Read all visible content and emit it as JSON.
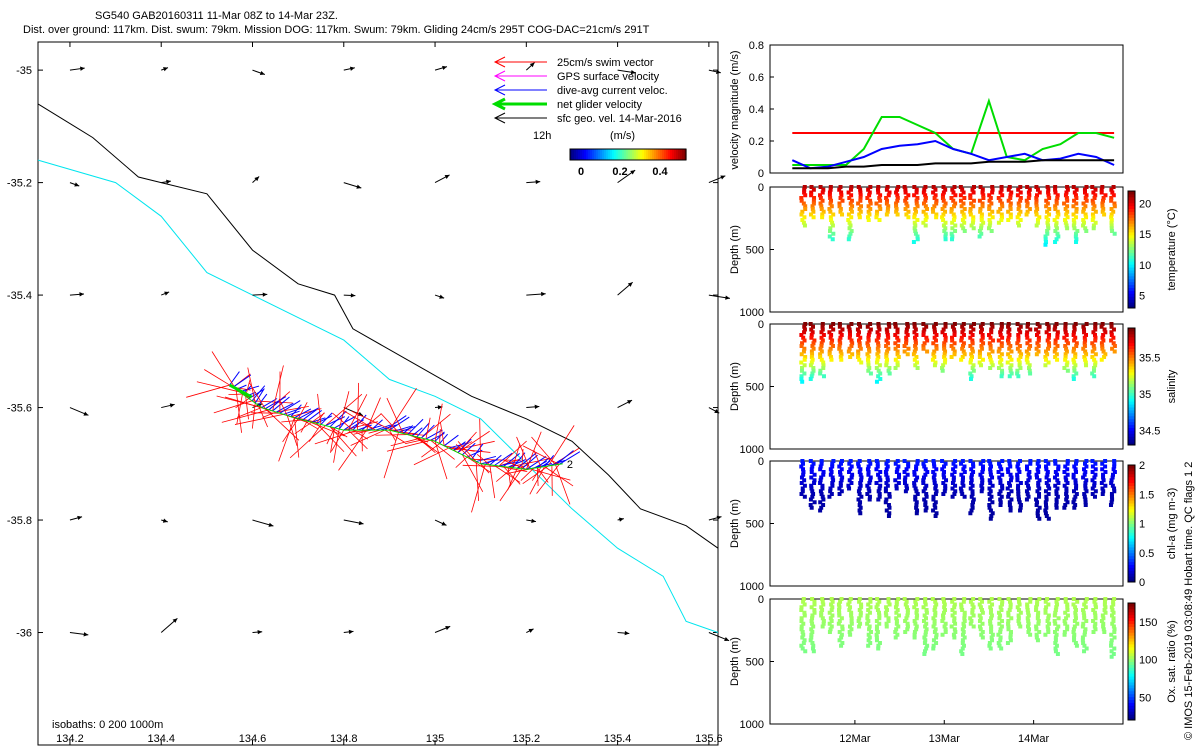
{
  "header": {
    "title": "SG540 GAB20160311 11-Mar 08Z to 14-Mar 23Z.",
    "subtitle": "Dist. over ground: 117km. Dist. swum: 79km. Mission DOG: 117km. Swum: 79km. Gliding 24cm/s 295T COG-DAC=21cm/s 291T"
  },
  "colors": {
    "swim": "#ff0000",
    "gps": "#ff00ff",
    "dac": "#0000ff",
    "net": "#00dd00",
    "sfc": "#000000",
    "iso200": "#000000",
    "iso1000": "#00e5ee"
  },
  "legend": {
    "items": [
      {
        "label": "25cm/s swim vector",
        "color": "#ff0000"
      },
      {
        "label": "GPS surface velocity",
        "color": "#ff00ff"
      },
      {
        "label": "dive-avg current veloc.",
        "color": "#0000ff"
      },
      {
        "label": "net glider velocity",
        "color": "#00dd00"
      },
      {
        "label": "sfc geo. vel. 14-Mar-2016",
        "color": "#000000"
      }
    ],
    "scale_label": "12h",
    "colorbar_units": "(m/s)",
    "colorbar_ticks": [
      "0",
      "0.2",
      "0.4"
    ]
  },
  "footer": {
    "isobaths": "isobaths: 0   200  1000m",
    "credit": "© IMOS 15-Feb-2019 03:08:49 Hobart time. QC flags 1  2"
  },
  "chart_data": [
    {
      "type": "scatter",
      "name": "map",
      "xlabel": "",
      "ylabel": "",
      "xlim": [
        134.13,
        135.62
      ],
      "ylim": [
        -36.2,
        -34.95
      ],
      "x_ticks": [
        "134.2",
        "134.4",
        "134.6",
        "134.8",
        "135",
        "135.2",
        "135.4",
        "135.6"
      ],
      "y_ticks": [
        "-35",
        "-35.2",
        "-35.4",
        "-35.6",
        "-35.8",
        "-36"
      ],
      "isobath_200": [
        [
          134.13,
          -35.06
        ],
        [
          134.25,
          -35.12
        ],
        [
          134.35,
          -35.19
        ],
        [
          134.4,
          -35.2
        ],
        [
          134.5,
          -35.22
        ],
        [
          134.6,
          -35.32
        ],
        [
          134.7,
          -35.38
        ],
        [
          134.78,
          -35.4
        ],
        [
          134.82,
          -35.46
        ],
        [
          134.95,
          -35.52
        ],
        [
          135.08,
          -35.58
        ],
        [
          135.2,
          -35.62
        ],
        [
          135.3,
          -35.66
        ],
        [
          135.38,
          -35.72
        ],
        [
          135.45,
          -35.78
        ],
        [
          135.55,
          -35.81
        ],
        [
          135.62,
          -35.85
        ]
      ],
      "isobath_1000": [
        [
          134.13,
          -35.16
        ],
        [
          134.3,
          -35.2
        ],
        [
          134.4,
          -35.26
        ],
        [
          134.5,
          -35.36
        ],
        [
          134.6,
          -35.4
        ],
        [
          134.7,
          -35.44
        ],
        [
          134.8,
          -35.48
        ],
        [
          134.9,
          -35.55
        ],
        [
          135.0,
          -35.58
        ],
        [
          135.1,
          -35.62
        ],
        [
          135.2,
          -35.7
        ],
        [
          135.3,
          -35.78
        ],
        [
          135.4,
          -35.85
        ],
        [
          135.5,
          -35.9
        ],
        [
          135.55,
          -35.98
        ],
        [
          135.62,
          -36.0
        ]
      ],
      "track": [
        [
          134.55,
          -35.56
        ],
        [
          134.62,
          -35.6
        ],
        [
          134.7,
          -35.62
        ],
        [
          134.8,
          -35.64
        ],
        [
          134.9,
          -35.64
        ],
        [
          135.0,
          -35.66
        ],
        [
          135.1,
          -35.7
        ],
        [
          135.2,
          -35.71
        ],
        [
          135.28,
          -35.7
        ]
      ],
      "track_end_label": "2",
      "grid_lon": [
        134.2,
        134.4,
        134.6,
        134.8,
        135.0,
        135.2,
        135.4,
        135.6
      ],
      "grid_lat": [
        -35.0,
        -35.2,
        -35.4,
        -35.6,
        -35.8,
        -36.0
      ]
    },
    {
      "type": "line",
      "name": "velocity",
      "title": "",
      "ylabel": "velocity magnitude (m/s)",
      "ylim": [
        0,
        0.8
      ],
      "y_ticks": [
        "0",
        "0.2",
        "0.4",
        "0.6",
        "0.8"
      ],
      "x_ticks": [
        "12Mar",
        "13Mar",
        "14Mar"
      ],
      "x": [
        11.3,
        11.5,
        11.7,
        11.9,
        12.1,
        12.3,
        12.5,
        12.7,
        12.9,
        13.1,
        13.3,
        13.5,
        13.7,
        13.9,
        14.1,
        14.3,
        14.5,
        14.7,
        14.9
      ],
      "series": [
        {
          "name": "swim",
          "color": "#ff0000",
          "values": [
            0.25,
            0.25,
            0.25,
            0.25,
            0.25,
            0.25,
            0.25,
            0.25,
            0.25,
            0.25,
            0.25,
            0.25,
            0.25,
            0.25,
            0.25,
            0.25,
            0.25,
            0.25,
            0.25
          ]
        },
        {
          "name": "net",
          "color": "#00dd00",
          "values": [
            0.05,
            0.05,
            0.05,
            0.05,
            0.15,
            0.35,
            0.35,
            0.3,
            0.25,
            0.15,
            0.12,
            0.45,
            0.1,
            0.08,
            0.15,
            0.18,
            0.25,
            0.25,
            0.22
          ]
        },
        {
          "name": "dac",
          "color": "#0000ff",
          "values": [
            0.08,
            0.03,
            0.04,
            0.07,
            0.1,
            0.15,
            0.17,
            0.18,
            0.2,
            0.15,
            0.12,
            0.08,
            0.1,
            0.12,
            0.08,
            0.09,
            0.12,
            0.1,
            0.05
          ]
        },
        {
          "name": "sfc",
          "color": "#000000",
          "values": [
            0.03,
            0.03,
            0.03,
            0.04,
            0.04,
            0.05,
            0.05,
            0.05,
            0.06,
            0.06,
            0.06,
            0.07,
            0.07,
            0.07,
            0.08,
            0.08,
            0.08,
            0.08,
            0.08
          ]
        }
      ]
    },
    {
      "type": "scatter",
      "name": "temperature",
      "ylabel": "Depth (m)",
      "clabel": "temperature (°C)",
      "ylim": [
        1000,
        0
      ],
      "y_ticks": [
        "0",
        "500",
        "1000"
      ],
      "clim": [
        3,
        22
      ],
      "c_ticks": [
        "5",
        "10",
        "15",
        "20"
      ],
      "palette": "jet",
      "shallow_color_value": 21,
      "mid_color_value": 15,
      "deep_color_value": 9
    },
    {
      "type": "scatter",
      "name": "salinity",
      "ylabel": "Depth (m)",
      "clabel": "salinity",
      "ylim": [
        1000,
        0
      ],
      "y_ticks": [
        "0",
        "500",
        "1000"
      ],
      "clim": [
        34.3,
        35.9
      ],
      "c_ticks": [
        "34.5",
        "35",
        "35.5"
      ],
      "palette": "jet",
      "shallow_color_value": 35.9,
      "mid_color_value": 35.4,
      "deep_color_value": 34.8
    },
    {
      "type": "scatter",
      "name": "chla",
      "ylabel": "Depth (m)",
      "clabel": "chl-a (mg m-3)",
      "ylim": [
        1000,
        0
      ],
      "y_ticks": [
        "0",
        "500",
        "1000"
      ],
      "clim": [
        0,
        2
      ],
      "c_ticks": [
        "0",
        "0.5",
        "1",
        "1.5",
        "2"
      ],
      "palette": "jet",
      "shallow_color_value": 0.3,
      "mid_color_value": 0.1,
      "deep_color_value": 0.05
    },
    {
      "type": "scatter",
      "name": "oxygen",
      "ylabel": "Depth (m)",
      "clabel": "Ox. sat. ratio (%)",
      "ylim": [
        1000,
        0
      ],
      "y_ticks": [
        "0",
        "500",
        "1000"
      ],
      "clim": [
        20,
        175
      ],
      "c_ticks": [
        "50",
        "100",
        "150"
      ],
      "palette": "jet",
      "shallow_color_value": 105,
      "mid_color_value": 100,
      "deep_color_value": 95
    }
  ]
}
